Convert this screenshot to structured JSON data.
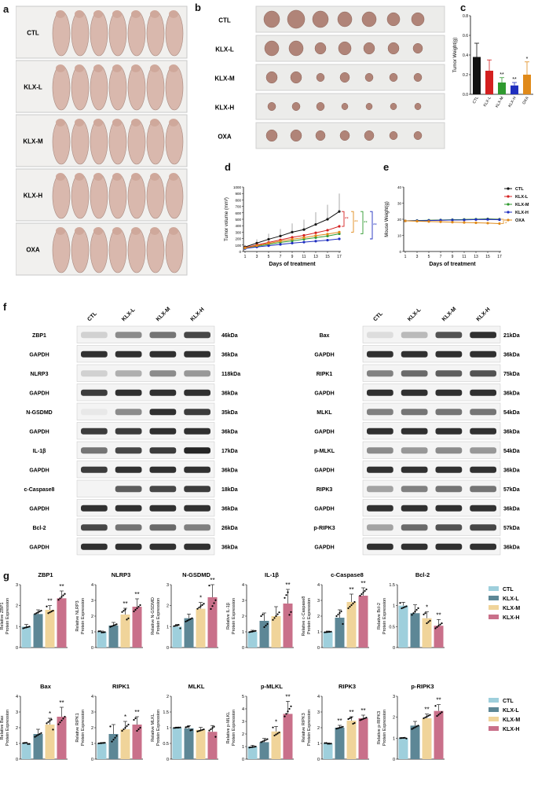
{
  "panels": {
    "a": "a",
    "b": "b",
    "c": "c",
    "d": "d",
    "e": "e",
    "f": "f",
    "g": "g"
  },
  "groups": [
    "CTL",
    "KLX-L",
    "KLX-M",
    "KLX-H",
    "OXA"
  ],
  "colors": {
    "CTL": "#111111",
    "KLX-L": "#d42020",
    "KLX-M": "#2f9a2f",
    "KLX-H": "#1f2fbf",
    "OXA": "#e08a1a"
  },
  "bar_colors": {
    "CTL": "#9ecfdc",
    "KLX-L": "#5d8796",
    "KLX-M": "#f0d49a",
    "KLX-H": "#c9708a"
  },
  "wb_left": {
    "lanes": [
      "CTL",
      "KLX-L",
      "KLX-M",
      "KLX-H"
    ],
    "rows": [
      {
        "label": "ZBP1",
        "kda": "46kDa"
      },
      {
        "label": "GAPDH",
        "kda": "36kDa"
      },
      {
        "label": "NLRP3",
        "kda": "118kDa"
      },
      {
        "label": "GAPDH",
        "kda": "36kDa"
      },
      {
        "label": "N-GSDMD",
        "kda": "35kDa"
      },
      {
        "label": "GAPDH",
        "kda": "36kDa"
      },
      {
        "label": "IL-1β",
        "kda": "17kDa"
      },
      {
        "label": "GAPDH",
        "kda": "36kDa"
      },
      {
        "label": "c-Caspase8",
        "kda": "18kDa"
      },
      {
        "label": "GAPDH",
        "kda": "36kDa"
      },
      {
        "label": "Bcl-2",
        "kda": "26kDa"
      },
      {
        "label": "GAPDH",
        "kda": "36kDa"
      }
    ]
  },
  "wb_right": {
    "lanes": [
      "CTL",
      "KLX-L",
      "KLX-M",
      "KLX-H"
    ],
    "rows": [
      {
        "label": "Bax",
        "kda": "21kDa"
      },
      {
        "label": "GAPDH",
        "kda": "36kDa"
      },
      {
        "label": "RIPK1",
        "kda": "75kDa"
      },
      {
        "label": "GAPDH",
        "kda": "36kDa"
      },
      {
        "label": "MLKL",
        "kda": "54kDa"
      },
      {
        "label": "GAPDH",
        "kda": "36kDa"
      },
      {
        "label": "p-MLKL",
        "kda": "54kDa"
      },
      {
        "label": "GAPDH",
        "kda": "36kDa"
      },
      {
        "label": "RIPK3",
        "kda": "57kDa"
      },
      {
        "label": "GAPDH",
        "kda": "36kDa"
      },
      {
        "label": "p-RIPK3",
        "kda": "57kDa"
      },
      {
        "label": "GAPDH",
        "kda": "36kDa"
      }
    ]
  },
  "chart_data": [
    {
      "id": "c",
      "type": "bar",
      "title": "",
      "ylabel": "Tumor Weight(g)",
      "categories": [
        "CTL",
        "KLX-L",
        "KLX-M",
        "KLX-H",
        "OXA"
      ],
      "values": [
        0.38,
        0.24,
        0.12,
        0.09,
        0.2
      ],
      "errors": [
        0.14,
        0.11,
        0.05,
        0.03,
        0.13
      ],
      "stars": [
        "",
        "",
        "**",
        "**",
        "*"
      ],
      "ylim": [
        0,
        0.8
      ],
      "yticks": [
        0.0,
        0.2,
        0.4,
        0.6,
        0.8
      ]
    },
    {
      "id": "d",
      "type": "line",
      "title": "",
      "xlabel": "Days of treatment",
      "ylabel": "Tumor volume (mm³)",
      "x": [
        1,
        3,
        5,
        7,
        9,
        11,
        13,
        15,
        17
      ],
      "ylim": [
        0,
        1000
      ],
      "yticks": [
        0,
        100,
        200,
        300,
        400,
        500,
        600,
        700,
        800,
        900,
        1000
      ],
      "series": [
        {
          "name": "CTL",
          "values": [
            70,
            130,
            190,
            240,
            300,
            340,
            420,
            500,
            620
          ]
        },
        {
          "name": "KLX-L",
          "values": [
            60,
            100,
            140,
            180,
            220,
            250,
            290,
            330,
            390
          ]
        },
        {
          "name": "KLX-M",
          "values": [
            50,
            80,
            110,
            140,
            165,
            190,
            215,
            240,
            275
          ]
        },
        {
          "name": "KLX-H",
          "values": [
            45,
            70,
            90,
            110,
            130,
            145,
            160,
            175,
            195
          ]
        },
        {
          "name": "OXA",
          "values": [
            55,
            90,
            125,
            160,
            190,
            215,
            245,
            270,
            300
          ]
        }
      ],
      "stars": [
        "**",
        "**",
        "**",
        "**"
      ]
    },
    {
      "id": "e",
      "type": "line",
      "title": "",
      "xlabel": "Days of treatment",
      "ylabel": "Mouse Weight(g)",
      "x": [
        1,
        3,
        5,
        7,
        9,
        11,
        13,
        15,
        17
      ],
      "ylim": [
        0,
        40
      ],
      "yticks": [
        0,
        10,
        20,
        30,
        40
      ],
      "series": [
        {
          "name": "CTL",
          "values": [
            19,
            19,
            19.2,
            19.5,
            19.6,
            19.8,
            20,
            20.2,
            20
          ]
        },
        {
          "name": "KLX-L",
          "values": [
            19,
            19.1,
            19.3,
            19.4,
            19.6,
            19.7,
            19.9,
            20,
            19.8
          ]
        },
        {
          "name": "KLX-M",
          "values": [
            19,
            19.2,
            19.4,
            19.5,
            19.7,
            19.8,
            20,
            20.1,
            19.9
          ]
        },
        {
          "name": "KLX-H",
          "values": [
            19,
            19.1,
            19.2,
            19.4,
            19.5,
            19.6,
            19.8,
            19.9,
            19.7
          ]
        },
        {
          "name": "OXA",
          "values": [
            19,
            18.8,
            18.6,
            18.4,
            18.2,
            18,
            17.8,
            17.6,
            17.3
          ]
        }
      ],
      "stars": [
        "*"
      ]
    },
    {
      "id": "g",
      "type": "bar",
      "categories": [
        "CTL",
        "KLX-L",
        "KLX-M",
        "KLX-H"
      ],
      "legend": [
        "CTL",
        "KLX-L",
        "KLX-M",
        "KLX-H"
      ],
      "subplots": [
        {
          "title": "ZBP1",
          "ylabel": "Relative ZBP1 Protein Expression",
          "ylim": [
            0,
            3
          ],
          "yticks": [
            0,
            1,
            2,
            3
          ],
          "values": [
            1.0,
            1.6,
            1.8,
            2.35
          ],
          "errors": [
            0.1,
            0.2,
            0.2,
            0.35
          ],
          "stars": [
            "",
            "",
            "**",
            "**"
          ]
        },
        {
          "title": "NLRP3",
          "ylabel": "Relative NLRP3 Protein Expression",
          "ylim": [
            0,
            4
          ],
          "yticks": [
            0,
            1,
            2,
            3,
            4
          ],
          "values": [
            1.0,
            1.4,
            2.1,
            2.6
          ],
          "errors": [
            0.05,
            0.2,
            0.4,
            0.5
          ],
          "stars": [
            "",
            "",
            "**",
            "**"
          ]
        },
        {
          "title": "N-GSDMD",
          "ylabel": "Relative N-GSDMD Protein Expression",
          "ylim": [
            0,
            3
          ],
          "yticks": [
            0,
            1,
            2,
            3
          ],
          "values": [
            1.0,
            1.4,
            1.85,
            2.4
          ],
          "errors": [
            0.1,
            0.2,
            0.3,
            0.7
          ],
          "stars": [
            "",
            "",
            "*",
            "**"
          ]
        },
        {
          "title": "IL-1β",
          "ylabel": "Relative IL-1β Protein Expression",
          "ylim": [
            0,
            4
          ],
          "yticks": [
            0,
            1,
            2,
            3,
            4
          ],
          "values": [
            1.0,
            1.7,
            2.0,
            2.8
          ],
          "errors": [
            0.1,
            0.5,
            0.6,
            0.9
          ],
          "stars": [
            "",
            "",
            "",
            "**"
          ]
        },
        {
          "title": "c-Caspase8",
          "ylabel": "Relative c-Caspase8 Protein Expression",
          "ylim": [
            0,
            4
          ],
          "yticks": [
            0,
            1,
            2,
            3,
            4
          ],
          "values": [
            1.0,
            1.9,
            2.9,
            3.3
          ],
          "errors": [
            0.05,
            0.5,
            0.5,
            0.5
          ],
          "stars": [
            "",
            "",
            "**",
            "**"
          ]
        },
        {
          "title": "Bcl-2",
          "ylabel": "Relative Bcl-2 Protein Expression",
          "ylim": [
            0,
            1.5
          ],
          "yticks": [
            0.0,
            0.5,
            1.0,
            1.5
          ],
          "values": [
            1.0,
            0.82,
            0.7,
            0.52
          ],
          "errors": [
            0.08,
            0.2,
            0.15,
            0.15
          ],
          "stars": [
            "",
            "",
            "*",
            "**"
          ]
        },
        {
          "title": "Bax",
          "ylabel": "Relative Bax Protein Expression",
          "ylim": [
            0,
            4
          ],
          "yticks": [
            0,
            1,
            2,
            3,
            4
          ],
          "values": [
            1.0,
            1.6,
            2.2,
            2.7
          ],
          "errors": [
            0.05,
            0.3,
            0.4,
            0.6
          ],
          "stars": [
            "",
            "",
            "*",
            "**"
          ]
        },
        {
          "title": "RIPK1",
          "ylabel": "Relative RIPK1 Protein Expression",
          "ylim": [
            0,
            4
          ],
          "yticks": [
            0,
            1,
            2,
            3,
            4
          ],
          "values": [
            1.0,
            1.6,
            1.9,
            2.2
          ],
          "errors": [
            0.05,
            0.6,
            0.5,
            0.5
          ],
          "stars": [
            "",
            "",
            "*",
            "**"
          ]
        },
        {
          "title": "MLKL",
          "ylabel": "Relative MLKL Protein Expression",
          "ylim": [
            0,
            2.0
          ],
          "yticks": [
            0.0,
            0.5,
            1.0,
            1.5,
            2.0
          ],
          "values": [
            1.0,
            0.98,
            0.93,
            0.87
          ],
          "errors": [
            0.02,
            0.08,
            0.08,
            0.2
          ],
          "stars": [
            "",
            "",
            "",
            ""
          ]
        },
        {
          "title": "p-MLKL",
          "ylabel": "Relative p-MLKL Protein Expression",
          "ylim": [
            0,
            5
          ],
          "yticks": [
            0,
            1,
            2,
            3,
            4,
            5
          ],
          "values": [
            1.0,
            1.35,
            2.2,
            3.6
          ],
          "errors": [
            0.1,
            0.3,
            0.4,
            1.0
          ],
          "stars": [
            "",
            "",
            "*",
            "**"
          ]
        },
        {
          "title": "RIPK3",
          "ylabel": "Relative RIPK3 Protein Expression",
          "ylim": [
            0,
            4
          ],
          "yticks": [
            0,
            1,
            2,
            3,
            4
          ],
          "values": [
            1.0,
            2.0,
            2.45,
            2.6
          ],
          "errors": [
            0.03,
            0.15,
            0.25,
            0.2
          ],
          "stars": [
            "",
            "**",
            "**",
            "**"
          ]
        },
        {
          "title": "p-RIPK3",
          "ylabel": "Relative p-RIPK3 Protein Expression",
          "ylim": [
            0,
            3
          ],
          "yticks": [
            0,
            1,
            2,
            3
          ],
          "values": [
            1.0,
            1.6,
            1.95,
            2.3
          ],
          "errors": [
            0.02,
            0.2,
            0.2,
            0.3
          ],
          "stars": [
            "",
            "",
            "**",
            "**"
          ]
        }
      ]
    }
  ]
}
